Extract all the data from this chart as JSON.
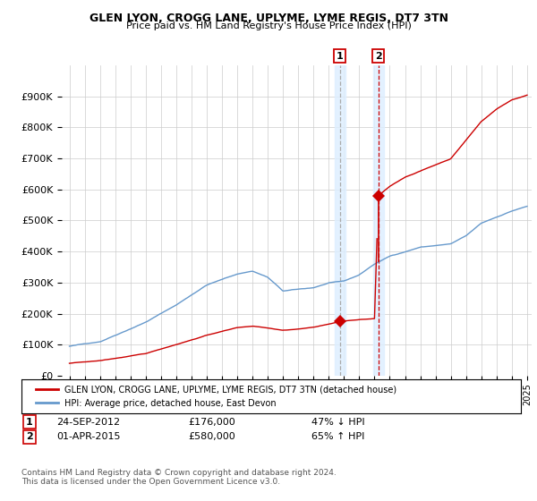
{
  "title1": "GLEN LYON, CROGG LANE, UPLYME, LYME REGIS, DT7 3TN",
  "title2": "Price paid vs. HM Land Registry's House Price Index (HPI)",
  "legend_label_red": "GLEN LYON, CROGG LANE, UPLYME, LYME REGIS, DT7 3TN (detached house)",
  "legend_label_blue": "HPI: Average price, detached house, East Devon",
  "transaction1_date": "24-SEP-2012",
  "transaction1_price": "£176,000",
  "transaction1_pct": "47% ↓ HPI",
  "transaction2_date": "01-APR-2015",
  "transaction2_price": "£580,000",
  "transaction2_pct": "65% ↑ HPI",
  "footer": "Contains HM Land Registry data © Crown copyright and database right 2024.\nThis data is licensed under the Open Government Licence v3.0.",
  "year_start": 1995,
  "year_end": 2025,
  "ylim_max": 1000000,
  "red_color": "#cc0000",
  "blue_color": "#6699cc",
  "bg_color": "#ffffff",
  "grid_color": "#cccccc",
  "transaction1_year": 2012.73,
  "transaction2_year": 2015.25,
  "transaction1_price_val": 176000,
  "transaction2_price_val": 580000
}
